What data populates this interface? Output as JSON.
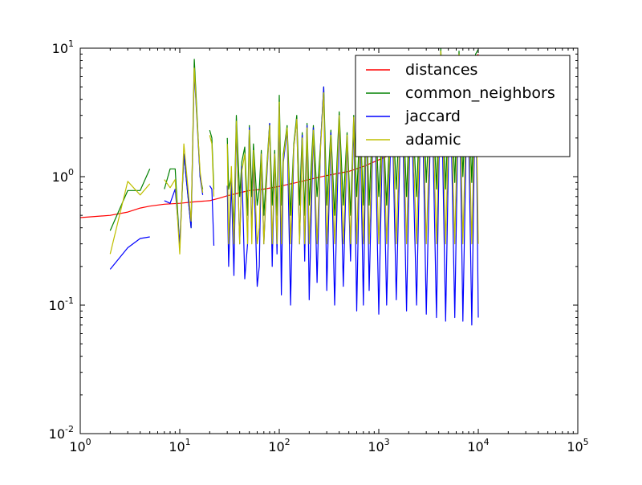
{
  "chart_data": {
    "type": "line",
    "title": "",
    "xlabel": "",
    "ylabel": "",
    "x_scale": "log",
    "y_scale": "log",
    "xlim": [
      1,
      100000
    ],
    "ylim": [
      0.01,
      10
    ],
    "grid": false,
    "legend_position": "top-right",
    "x_ticks": [
      {
        "value": 1,
        "base": "10",
        "exp": "0"
      },
      {
        "value": 10,
        "base": "10",
        "exp": "1"
      },
      {
        "value": 100,
        "base": "10",
        "exp": "2"
      },
      {
        "value": 1000,
        "base": "10",
        "exp": "3"
      },
      {
        "value": 10000,
        "base": "10",
        "exp": "4"
      },
      {
        "value": 100000,
        "base": "10",
        "exp": "5"
      }
    ],
    "y_ticks": [
      {
        "value": 0.01,
        "base": "10",
        "exp": "-2"
      },
      {
        "value": 0.1,
        "base": "10",
        "exp": "-1"
      },
      {
        "value": 1,
        "base": "10",
        "exp": "0"
      },
      {
        "value": 10,
        "base": "10",
        "exp": "1"
      }
    ],
    "series": [
      {
        "name": "distances",
        "color": "#ff0000",
        "x": [
          1,
          2,
          3,
          4,
          5,
          7,
          10,
          15,
          20,
          25,
          30,
          40,
          50,
          70,
          100,
          150,
          200,
          300,
          500,
          700,
          1000,
          2000,
          3000,
          5000,
          7000,
          10000
        ],
        "y": [
          0.48,
          0.5,
          0.53,
          0.57,
          0.59,
          0.61,
          0.62,
          0.64,
          0.65,
          0.68,
          0.71,
          0.75,
          0.78,
          0.8,
          0.84,
          0.9,
          0.95,
          1.02,
          1.1,
          1.2,
          1.35,
          1.7,
          2.2,
          3.5,
          5.5,
          9.0
        ]
      },
      {
        "name": "common_neighbors",
        "color": "#008000",
        "x": [
          2,
          3,
          4,
          5,
          null,
          7,
          8,
          9,
          10,
          11,
          13,
          14,
          15,
          16,
          17,
          null,
          20,
          21,
          22,
          null,
          30,
          31,
          33,
          35,
          37,
          40,
          42,
          45,
          48,
          50,
          53,
          55,
          60,
          63,
          66,
          70,
          75,
          80,
          85,
          90,
          95,
          100,
          105,
          110,
          120,
          130,
          140,
          150,
          160,
          170,
          180,
          190,
          200,
          220,
          240,
          260,
          280,
          300,
          330,
          360,
          400,
          440,
          480,
          520,
          560,
          600,
          650,
          700,
          750,
          800,
          900,
          1000,
          1100,
          1200,
          1350,
          1500,
          1700,
          1900,
          2100,
          2400,
          2700,
          3000,
          3400,
          3800,
          4200,
          4700,
          5200,
          5800,
          6400,
          7000,
          7800,
          8600,
          9400,
          10000
        ],
        "y": [
          0.38,
          0.78,
          0.78,
          1.15,
          null,
          0.8,
          1.15,
          1.15,
          0.28,
          1.5,
          0.4,
          8.2,
          2.8,
          1.0,
          0.8,
          null,
          2.3,
          2.0,
          0.8,
          null,
          2.0,
          0.8,
          1.0,
          0.4,
          3.0,
          0.7,
          1.3,
          1.7,
          0.5,
          2.5,
          0.7,
          1.8,
          0.6,
          0.8,
          1.6,
          0.5,
          1.2,
          2.6,
          0.6,
          1.6,
          0.5,
          4.3,
          0.6,
          1.5,
          2.5,
          0.5,
          1.8,
          3.0,
          0.6,
          2.2,
          0.5,
          2.6,
          0.6,
          2.5,
          0.7,
          1.8,
          5.0,
          0.6,
          2.3,
          0.5,
          3.2,
          0.6,
          2.2,
          0.5,
          3.0,
          0.7,
          2.8,
          0.6,
          3.5,
          0.6,
          6.0,
          0.7,
          3.0,
          0.6,
          5.0,
          0.8,
          7.0,
          0.7,
          6.0,
          0.7,
          8.5,
          0.9,
          6.5,
          0.8,
          10.0,
          0.8,
          7.5,
          0.9,
          9.5,
          1.0,
          8.0,
          0.9,
          9.0,
          9.8
        ]
      },
      {
        "name": "jaccard",
        "color": "#0000ff",
        "x": [
          2,
          3,
          4,
          5,
          null,
          7,
          8,
          9,
          10,
          11,
          13,
          14,
          15,
          16,
          17,
          null,
          20,
          21,
          22,
          null,
          30,
          31,
          33,
          35,
          37,
          40,
          42,
          45,
          48,
          50,
          53,
          55,
          60,
          63,
          66,
          70,
          75,
          80,
          85,
          90,
          95,
          100,
          105,
          110,
          120,
          130,
          140,
          150,
          160,
          170,
          180,
          190,
          200,
          220,
          240,
          260,
          280,
          300,
          330,
          360,
          400,
          440,
          480,
          520,
          560,
          600,
          650,
          700,
          750,
          800,
          900,
          1000,
          1100,
          1200,
          1350,
          1500,
          1700,
          1900,
          2100,
          2400,
          2700,
          3000,
          3400,
          3800,
          4200,
          4700,
          5200,
          5800,
          6400,
          7000,
          7800,
          8600,
          9400,
          10000
        ],
        "y": [
          0.19,
          0.28,
          0.33,
          0.34,
          null,
          0.65,
          0.62,
          0.8,
          0.3,
          1.5,
          0.4,
          6.5,
          2.5,
          1.0,
          0.72,
          null,
          0.85,
          0.8,
          0.29,
          null,
          0.85,
          0.2,
          0.9,
          0.17,
          2.5,
          0.3,
          1.2,
          0.16,
          0.3,
          2.4,
          0.35,
          1.5,
          0.14,
          0.2,
          1.5,
          0.3,
          1.0,
          2.6,
          0.2,
          1.5,
          0.25,
          3.5,
          0.12,
          1.3,
          2.3,
          0.1,
          1.7,
          2.8,
          0.3,
          2.1,
          0.22,
          2.5,
          0.11,
          2.4,
          0.15,
          1.8,
          5.0,
          0.13,
          2.2,
          0.1,
          3.0,
          0.14,
          2.0,
          0.22,
          2.8,
          0.09,
          2.5,
          0.1,
          3.2,
          0.13,
          5.5,
          0.085,
          2.8,
          0.1,
          4.5,
          0.11,
          6.0,
          0.09,
          5.2,
          0.1,
          7.5,
          0.085,
          6.0,
          0.08,
          9.0,
          0.075,
          7.0,
          0.08,
          8.5,
          0.075,
          7.5,
          0.07,
          8.0,
          0.08
        ]
      },
      {
        "name": "adamic",
        "color": "#bfbf00",
        "x": [
          2,
          3,
          4,
          5,
          null,
          7,
          8,
          9,
          10,
          11,
          13,
          14,
          15,
          16,
          17,
          null,
          20,
          21,
          22,
          null,
          30,
          31,
          33,
          35,
          37,
          40,
          42,
          45,
          48,
          50,
          53,
          55,
          60,
          63,
          66,
          70,
          75,
          80,
          85,
          90,
          95,
          100,
          105,
          110,
          120,
          130,
          140,
          150,
          160,
          170,
          180,
          190,
          200,
          220,
          240,
          260,
          280,
          300,
          330,
          360,
          400,
          440,
          480,
          520,
          560,
          600,
          650,
          700,
          750,
          800,
          900,
          1000,
          1100,
          1200,
          1350,
          1500,
          1700,
          1900,
          2100,
          2400,
          2700,
          3000,
          3400,
          3800,
          4200,
          4700,
          5200,
          5800,
          6400,
          7000,
          7800,
          8600,
          9400,
          10000
        ],
        "y": [
          0.25,
          0.92,
          0.72,
          0.88,
          null,
          0.95,
          0.82,
          0.95,
          0.25,
          1.8,
          0.45,
          7.0,
          2.6,
          1.1,
          0.75,
          null,
          2.1,
          1.8,
          0.7,
          null,
          1.8,
          0.3,
          1.2,
          0.3,
          2.7,
          0.3,
          1.1,
          1.5,
          0.3,
          2.3,
          0.3,
          1.6,
          0.3,
          0.4,
          1.5,
          0.3,
          1.1,
          2.5,
          0.3,
          1.5,
          0.3,
          3.8,
          0.3,
          1.4,
          2.4,
          0.3,
          1.7,
          2.8,
          0.3,
          2.0,
          0.3,
          2.4,
          0.3,
          2.3,
          0.3,
          1.7,
          4.5,
          0.3,
          2.1,
          0.3,
          3.0,
          0.3,
          2.1,
          0.3,
          2.9,
          0.3,
          2.6,
          0.3,
          3.3,
          0.3,
          5.5,
          0.3,
          2.9,
          0.3,
          4.8,
          0.3,
          6.5,
          0.3,
          5.5,
          0.3,
          8.0,
          0.3,
          6.2,
          0.3,
          9.5,
          0.3,
          7.2,
          0.3,
          9.0,
          0.3,
          7.8,
          0.3,
          8.5,
          0.3
        ]
      }
    ]
  }
}
